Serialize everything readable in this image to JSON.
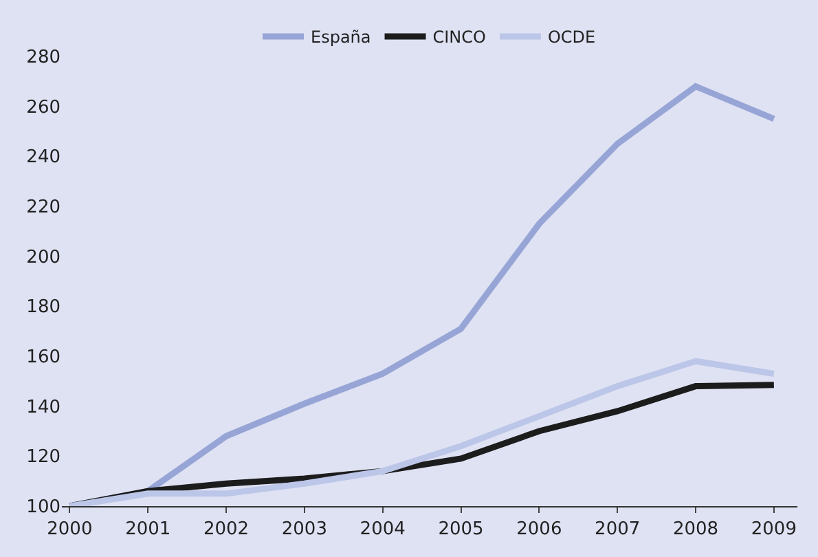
{
  "chart_data": {
    "type": "line",
    "x": [
      2000,
      2001,
      2002,
      2003,
      2004,
      2005,
      2006,
      2007,
      2008,
      2009
    ],
    "series": [
      {
        "name": "España",
        "color": "#97a5d6",
        "values": [
          100,
          106,
          128,
          141,
          153,
          171,
          213,
          245,
          268,
          255
        ]
      },
      {
        "name": "CINCO",
        "color": "#1c1c1c",
        "values": [
          100,
          106,
          109,
          111,
          114,
          119,
          130,
          138,
          148,
          148.5
        ]
      },
      {
        "name": "OCDE",
        "color": "#bcc6e8",
        "values": [
          100,
          105,
          105,
          109,
          114,
          124,
          136,
          148,
          158,
          153
        ]
      }
    ],
    "xlim": [
      1999.9,
      2009.3
    ],
    "xticks": [
      2000,
      2001,
      2002,
      2003,
      2004,
      2005,
      2006,
      2007,
      2008,
      2009
    ],
    "ylim": [
      100,
      280
    ],
    "yticks": [
      100,
      120,
      140,
      160,
      180,
      200,
      220,
      240,
      260,
      280
    ],
    "grid": false,
    "legend": "top",
    "marker": "none",
    "line_style": "solid"
  }
}
